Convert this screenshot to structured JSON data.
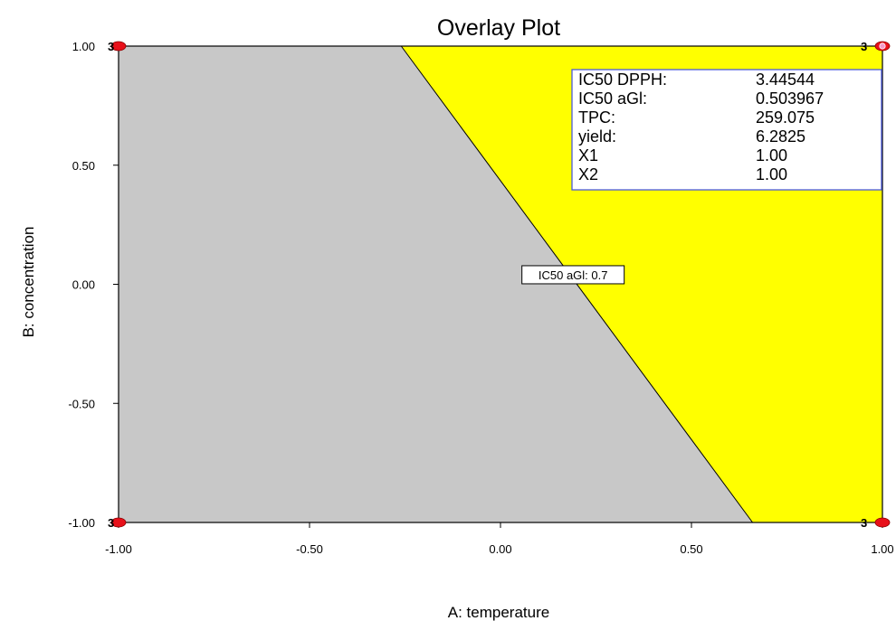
{
  "chart_data": {
    "type": "overlay-contour",
    "title": "Overlay Plot",
    "xlabel": "A: temperature",
    "ylabel": "B: concentration",
    "xlim": [
      -1.0,
      1.0
    ],
    "ylim": [
      -1.0,
      1.0
    ],
    "x_ticks": [
      {
        "value": -1.0,
        "label": "-1.00"
      },
      {
        "value": -0.5,
        "label": "-0.50"
      },
      {
        "value": 0.0,
        "label": "0.00"
      },
      {
        "value": 0.5,
        "label": "0.50"
      },
      {
        "value": 1.0,
        "label": "1.00"
      }
    ],
    "y_ticks": [
      {
        "value": 1.0,
        "label": "1.00"
      },
      {
        "value": 0.5,
        "label": "0.50"
      },
      {
        "value": 0.0,
        "label": "0.00"
      },
      {
        "value": -0.5,
        "label": "-0.50"
      },
      {
        "value": -1.0,
        "label": "-1.00"
      }
    ],
    "regions": [
      {
        "name": "infeasible",
        "color": "#c8c8c8",
        "polygon": [
          [
            -1.0,
            1.0
          ],
          [
            -0.26,
            1.0
          ],
          [
            0.66,
            -1.0
          ],
          [
            -1.0,
            -1.0
          ]
        ]
      },
      {
        "name": "feasible",
        "color": "#ffff00",
        "polygon": [
          [
            -0.26,
            1.0
          ],
          [
            1.0,
            1.0
          ],
          [
            1.0,
            -1.0
          ],
          [
            0.66,
            -1.0
          ]
        ]
      }
    ],
    "contour": {
      "label": "IC50 aGl: 0.7",
      "points": [
        [
          -0.26,
          1.0
        ],
        [
          0.66,
          -1.0
        ]
      ],
      "label_at": [
        0.19,
        0.04
      ]
    },
    "design_points": [
      {
        "x": -1.0,
        "y": 1.0,
        "count": "3"
      },
      {
        "x": 1.0,
        "y": 1.0,
        "count": "3"
      },
      {
        "x": -1.0,
        "y": -1.0,
        "count": "3"
      },
      {
        "x": 1.0,
        "y": -1.0,
        "count": "3"
      }
    ],
    "selected_point": {
      "x": 1.0,
      "y": 1.0
    },
    "info_box": {
      "rows": [
        {
          "label": "IC50 DPPH:",
          "value": "3.44544"
        },
        {
          "label": "IC50 aGl:",
          "value": "0.503967"
        },
        {
          "label": "TPC:",
          "value": "259.075"
        },
        {
          "label": "yield:",
          "value": "6.2825"
        },
        {
          "label": "X1",
          "value": "1.00"
        },
        {
          "label": "X2",
          "value": "1.00"
        }
      ]
    },
    "colors": {
      "infeasible": "#c8c8c8",
      "feasible": "#ffff00",
      "design_point": "#e8101a",
      "selected_point": "#f59ac8",
      "info_border": "#4a5ad8"
    }
  }
}
